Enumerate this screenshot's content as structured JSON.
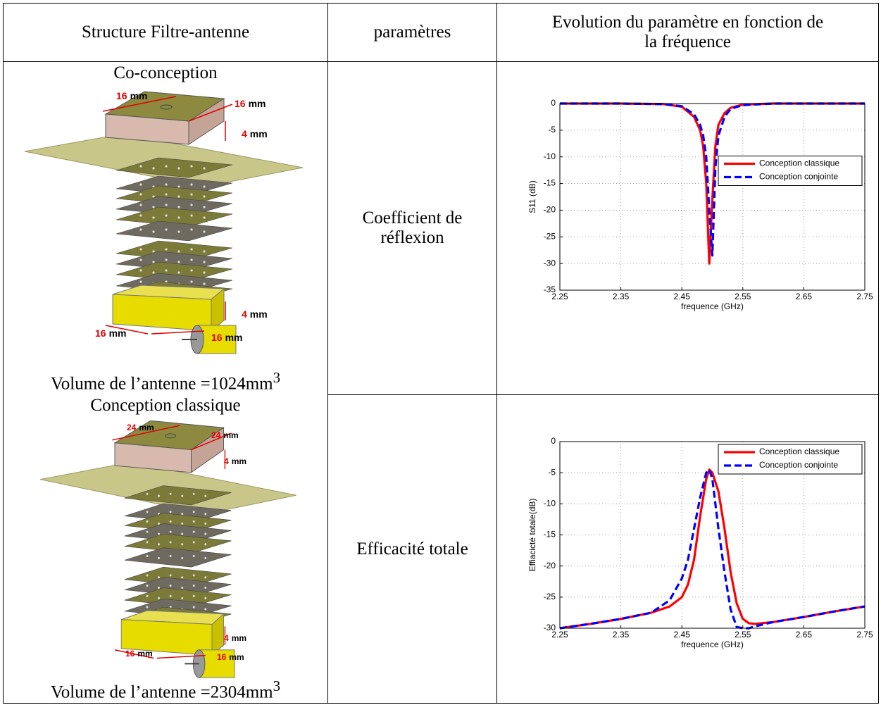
{
  "table": {
    "header": {
      "structure": "Structure Filtre-antenne",
      "parameters": "paramètres",
      "evolution": [
        "Evolution du paramètre en fonction de",
        "la fréquence"
      ]
    },
    "structures": [
      {
        "title": "Co-conception",
        "dimensions": [
          {
            "value": 16,
            "unit": "mm"
          },
          {
            "value": 16,
            "unit": "mm"
          },
          {
            "value": 4,
            "unit": "mm"
          },
          {
            "value": 4,
            "unit": "mm"
          },
          {
            "value": 16,
            "unit": "mm"
          },
          {
            "value": 16,
            "unit": "mm"
          }
        ],
        "volume": {
          "label": "Volume de l’antenne =",
          "value": 1024,
          "unit": "mm",
          "exponent": 3
        }
      },
      {
        "title": "Conception classique",
        "dimensions": [
          {
            "value": 24,
            "unit": "mm"
          },
          {
            "value": 24,
            "unit": "mm"
          },
          {
            "value": 4,
            "unit": "mm"
          },
          {
            "value": 4,
            "unit": "mm"
          },
          {
            "value": 16,
            "unit": "mm"
          },
          {
            "value": 16,
            "unit": "mm"
          }
        ],
        "volume": {
          "label": "Volume de l’antenne =",
          "value": 2304,
          "unit": "mm",
          "exponent": 3
        }
      }
    ],
    "parameters": [
      "Coefficient de réflexion",
      "Efficacité totale"
    ]
  },
  "chart_data": [
    {
      "type": "line",
      "xlabel": "frequence (GHz)",
      "ylabel": "S11 (dB)",
      "x": [
        2.25,
        2.35,
        2.42,
        2.45,
        2.47,
        2.48,
        2.485,
        2.49,
        2.495,
        2.5,
        2.505,
        2.51,
        2.52,
        2.53,
        2.55,
        2.6,
        2.75
      ],
      "series": [
        {
          "name": "Conception classique",
          "color": "#ff0000",
          "dash": false,
          "values": [
            0,
            0,
            -0.1,
            -0.6,
            -2.5,
            -5,
            -8,
            -15,
            -30,
            -18,
            -8,
            -4,
            -1.8,
            -0.8,
            -0.2,
            0,
            0
          ]
        },
        {
          "name": "Conception conjointe",
          "color": "#0000ff",
          "dash": true,
          "values": [
            0,
            0,
            -0.1,
            -0.5,
            -2,
            -4,
            -6,
            -10,
            -20,
            -28.5,
            -12,
            -6,
            -2.5,
            -1,
            -0.3,
            0,
            0
          ]
        }
      ],
      "xlim": [
        2.25,
        2.75
      ],
      "xticks": [
        2.25,
        2.35,
        2.45,
        2.55,
        2.65,
        2.75
      ],
      "ylim": [
        -35,
        0
      ],
      "yticks": [
        0,
        -5,
        -10,
        -15,
        -20,
        -25,
        -30,
        -35
      ],
      "grid": true,
      "legend": "east"
    },
    {
      "type": "line",
      "xlabel": "frequence (GHz)",
      "ylabel": "Effiacicté totale(dB)",
      "x": [
        2.25,
        2.3,
        2.35,
        2.4,
        2.43,
        2.45,
        2.46,
        2.47,
        2.48,
        2.49,
        2.495,
        2.5,
        2.51,
        2.52,
        2.53,
        2.54,
        2.55,
        2.56,
        2.57,
        2.6,
        2.65,
        2.7,
        2.75
      ],
      "series": [
        {
          "name": "Conception classique",
          "color": "#ff0000",
          "dash": false,
          "values": [
            -30,
            -29.3,
            -28.5,
            -27.5,
            -26.5,
            -25,
            -23,
            -19,
            -12,
            -6,
            -4.5,
            -5,
            -8,
            -14,
            -21,
            -26,
            -28.5,
            -29.2,
            -29.3,
            -29,
            -28.2,
            -27.3,
            -26.5
          ]
        },
        {
          "name": "Conception conjointe",
          "color": "#0000ff",
          "dash": true,
          "values": [
            -30,
            -29.3,
            -28.5,
            -27.5,
            -25.5,
            -22,
            -19,
            -14,
            -9,
            -5,
            -4.5,
            -6,
            -14,
            -21,
            -27,
            -29.8,
            -30,
            -30,
            -29.7,
            -29,
            -28.2,
            -27.3,
            -26.5
          ]
        }
      ],
      "xlim": [
        2.25,
        2.75
      ],
      "xticks": [
        2.25,
        2.35,
        2.45,
        2.55,
        2.65,
        2.75
      ],
      "ylim": [
        -30,
        0
      ],
      "yticks": [
        0,
        -5,
        -10,
        -15,
        -20,
        -25,
        -30
      ],
      "grid": true,
      "legend": "northeast"
    }
  ]
}
